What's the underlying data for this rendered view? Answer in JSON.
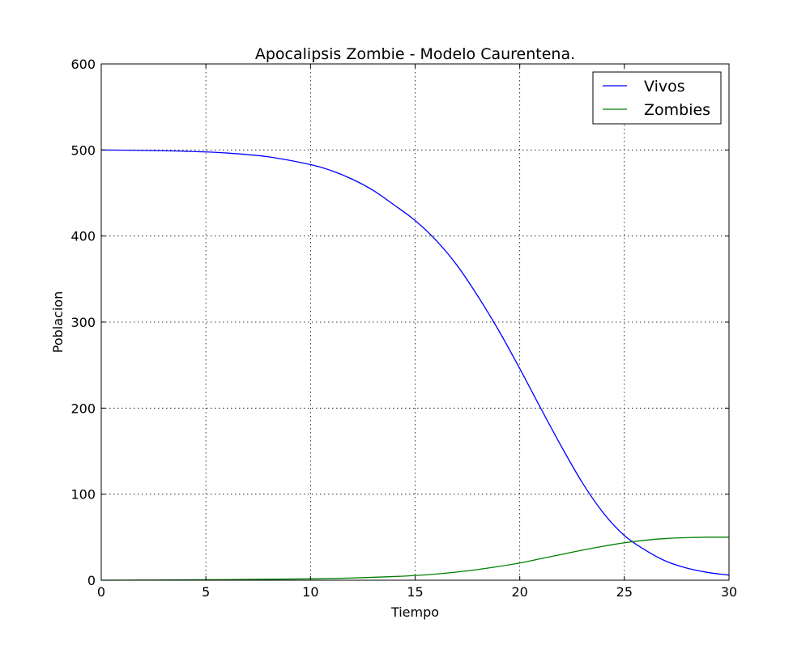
{
  "chart_data": {
    "type": "line",
    "title": "Apocalipsis Zombie - Modelo Caurentena.",
    "xlabel": "Tiempo",
    "ylabel": "Poblacion",
    "xlim": [
      0,
      30
    ],
    "ylim": [
      0,
      600
    ],
    "xticks": [
      0,
      5,
      10,
      15,
      20,
      25,
      30
    ],
    "yticks": [
      0,
      100,
      200,
      300,
      400,
      500,
      600
    ],
    "grid": true,
    "legend_position": "top-right",
    "series": [
      {
        "name": "Vivos",
        "color": "#0000ff",
        "x": [
          0,
          2,
          4,
          6,
          8,
          10,
          11,
          12,
          13,
          14,
          15,
          16,
          17,
          18,
          19,
          20,
          21,
          22,
          23,
          24,
          25,
          26,
          27,
          28,
          29,
          30
        ],
        "y": [
          500,
          499.5,
          498.5,
          496.5,
          492,
          483,
          476,
          466,
          453,
          436,
          418,
          395,
          366,
          330,
          290,
          246,
          200,
          155,
          113,
          78,
          52,
          35,
          22,
          14,
          9,
          6
        ]
      },
      {
        "name": "Zombies",
        "color": "#008000",
        "x": [
          0,
          2,
          4,
          6,
          8,
          10,
          12,
          14,
          15,
          16,
          17,
          18,
          19,
          20,
          21,
          22,
          23,
          24,
          25,
          26,
          27,
          28,
          29,
          30
        ],
        "y": [
          0,
          0.2,
          0.4,
          0.7,
          1.1,
          1.6,
          2.6,
          4.3,
          5.5,
          7.2,
          9.5,
          12.5,
          16,
          20,
          25,
          30,
          35,
          39.5,
          43.5,
          46.5,
          48.5,
          49.5,
          50,
          50
        ]
      }
    ]
  }
}
